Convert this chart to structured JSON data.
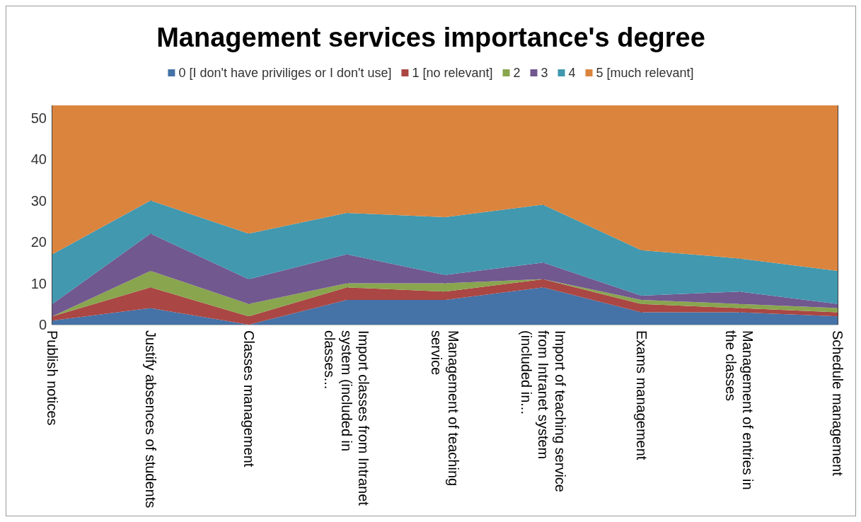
{
  "chart_data": {
    "type": "area",
    "title": "Management services importance's degree",
    "categories": [
      "Publish notices",
      "Justify absences of students",
      "Classes management",
      "Import classes from Intranet system (included in classes...",
      "Management of teaching service",
      "Import of teaching service from Intranet system (included in...",
      "Exams management",
      "Management of entries in the classes",
      "Schedule management"
    ],
    "stacked": true,
    "ylim": [
      0,
      53
    ],
    "yticks": [
      0,
      10,
      20,
      30,
      40,
      50
    ],
    "grid": "x",
    "legend": "top",
    "series": [
      {
        "name": "0 [I don't have priviliges or I don't use]",
        "color": "#4572a7",
        "values": [
          1,
          4,
          0,
          6,
          6,
          9,
          3,
          3,
          2
        ]
      },
      {
        "name": "1 [no relevant]",
        "color": "#aa4643",
        "values": [
          1,
          5,
          2,
          3,
          2,
          2,
          2,
          1,
          1
        ]
      },
      {
        "name": "2",
        "color": "#89a54e",
        "values": [
          0,
          4,
          3,
          1,
          2,
          0,
          1,
          1,
          1
        ]
      },
      {
        "name": "3",
        "color": "#71588f",
        "values": [
          3,
          9,
          6,
          7,
          2,
          4,
          1,
          3,
          1
        ]
      },
      {
        "name": "4",
        "color": "#4198af",
        "values": [
          12,
          8,
          11,
          10,
          14,
          14,
          11,
          8,
          8
        ]
      },
      {
        "name": "5 [much relevant]",
        "color": "#db843d",
        "values": [
          36,
          23,
          31,
          26,
          27,
          24,
          35,
          37,
          40
        ]
      }
    ]
  }
}
